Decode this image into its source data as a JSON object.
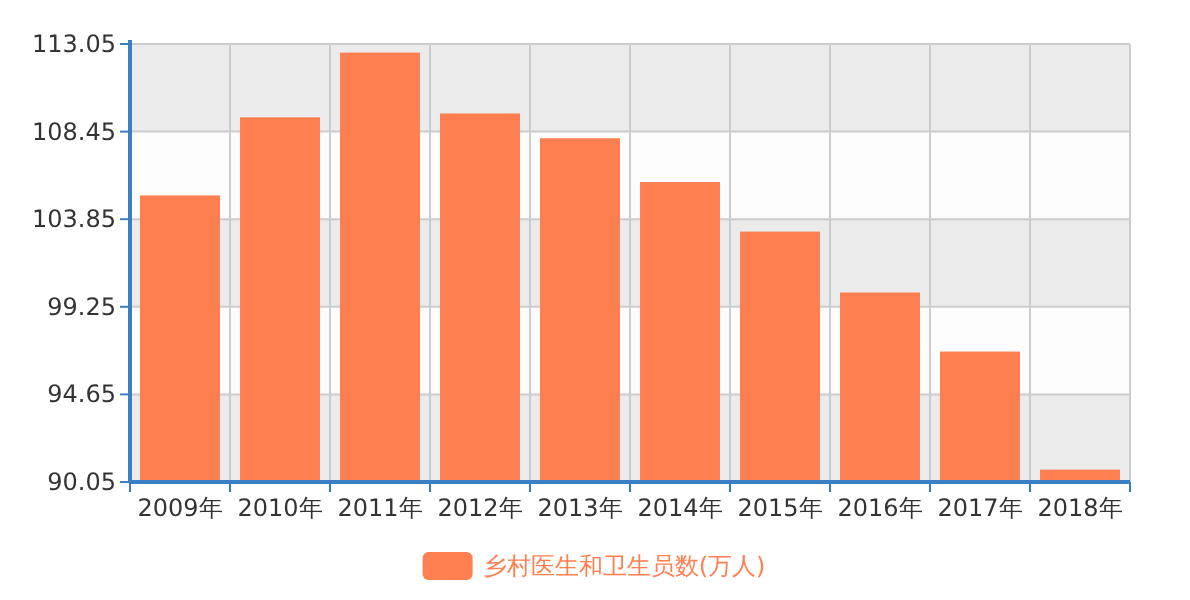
{
  "chart_data": {
    "type": "bar",
    "categories": [
      "2009年",
      "2010年",
      "2011年",
      "2012年",
      "2013年",
      "2014年",
      "2015年",
      "2016年",
      "2017年",
      "2018年"
    ],
    "series": [
      {
        "name": "乡村医生和卫生员数(万人)",
        "color": "#ff7f50",
        "values": [
          105.1,
          109.2,
          112.6,
          109.4,
          108.1,
          105.8,
          103.2,
          100.0,
          96.9,
          90.7
        ]
      }
    ],
    "ylim": [
      90.05,
      113.05
    ],
    "yticks": [
      90.05,
      94.65,
      99.25,
      103.85,
      108.45,
      113.05
    ],
    "grid": true,
    "legend": "bottom"
  }
}
